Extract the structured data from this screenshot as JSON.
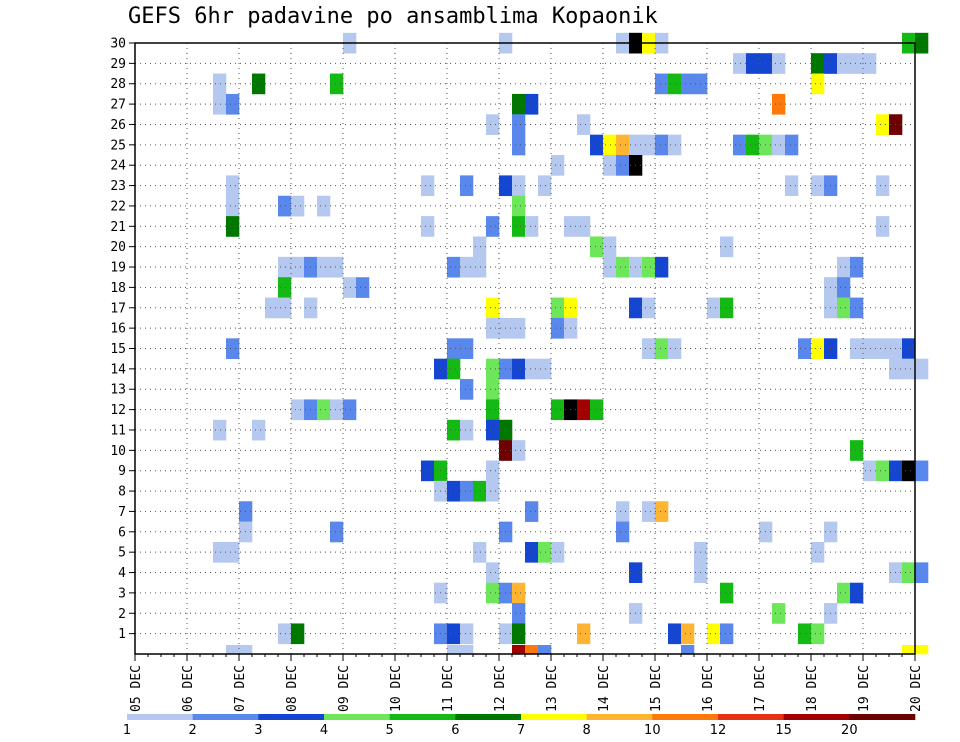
{
  "chart_data": {
    "type": "heatmap",
    "title": "GEFS 6hr padavine po ansamblima Kopaonik",
    "x_tick_labels": [
      "05 DEC",
      "06 DEC",
      "07 DEC",
      "08 DEC",
      "09 DEC",
      "10 DEC",
      "11 DEC",
      "12 DEC",
      "13 DEC",
      "14 DEC",
      "15 DEC",
      "16 DEC",
      "17 DEC",
      "18 DEC",
      "19 DEC",
      "20 DEC"
    ],
    "y_tick_labels": [
      "1",
      "2",
      "3",
      "4",
      "5",
      "6",
      "7",
      "8",
      "9",
      "10",
      "11",
      "12",
      "13",
      "14",
      "15",
      "16",
      "17",
      "18",
      "19",
      "20",
      "21",
      "22",
      "23",
      "24",
      "25",
      "26",
      "27",
      "28",
      "29",
      "30"
    ],
    "x_range_days": [
      0,
      15
    ],
    "y_range": [
      0,
      30
    ],
    "grid": "dotted",
    "time_step_hours": 6,
    "color_scale": {
      "labels": [
        "1",
        "2",
        "3",
        "4",
        "5",
        "6",
        "7",
        "8",
        "10",
        "12",
        "15",
        "20"
      ],
      "colors": [
        "#b4c8f0",
        "#5a87eb",
        "#1446d2",
        "#6ee65a",
        "#14b914",
        "#007800",
        "#ffff00",
        "#ffb432",
        "#ff780a",
        "#e63214",
        "#a00000",
        "#6e0000"
      ]
    },
    "cells": [
      {
        "m": 30,
        "c": [
          [
            16,
            1
          ],
          [
            28,
            1
          ],
          [
            37,
            1
          ],
          [
            38,
            13
          ],
          [
            39,
            7
          ],
          [
            40,
            1
          ],
          [
            59,
            5
          ],
          [
            60,
            6
          ]
        ]
      },
      {
        "m": 29,
        "c": [
          [
            46,
            1
          ],
          [
            47,
            3
          ],
          [
            48,
            3
          ],
          [
            49,
            1
          ],
          [
            52,
            6
          ],
          [
            53,
            3
          ],
          [
            54,
            1
          ],
          [
            55,
            1
          ],
          [
            56,
            1
          ]
        ]
      },
      {
        "m": 28,
        "c": [
          [
            6,
            1
          ],
          [
            9,
            6
          ],
          [
            15,
            5
          ],
          [
            40,
            2
          ],
          [
            41,
            5
          ],
          [
            42,
            2
          ],
          [
            43,
            2
          ],
          [
            52,
            7
          ]
        ]
      },
      {
        "m": 27,
        "c": [
          [
            6,
            1
          ],
          [
            7,
            2
          ],
          [
            29,
            6
          ],
          [
            30,
            3
          ],
          [
            49,
            9
          ]
        ]
      },
      {
        "m": 26,
        "c": [
          [
            27,
            1
          ],
          [
            29,
            2
          ],
          [
            34,
            1
          ],
          [
            57,
            7
          ],
          [
            58,
            12
          ]
        ]
      },
      {
        "m": 25,
        "c": [
          [
            29,
            2
          ],
          [
            35,
            3
          ],
          [
            36,
            7
          ],
          [
            37,
            8
          ],
          [
            38,
            1
          ],
          [
            39,
            1
          ],
          [
            40,
            2
          ],
          [
            41,
            1
          ],
          [
            46,
            2
          ],
          [
            47,
            5
          ],
          [
            48,
            4
          ],
          [
            49,
            1
          ],
          [
            50,
            2
          ]
        ]
      },
      {
        "m": 24,
        "c": [
          [
            32,
            1
          ],
          [
            36,
            1
          ],
          [
            37,
            2
          ],
          [
            38,
            13
          ]
        ]
      },
      {
        "m": 23,
        "c": [
          [
            7,
            1
          ],
          [
            22,
            1
          ],
          [
            25,
            2
          ],
          [
            28,
            3
          ],
          [
            29,
            1
          ],
          [
            31,
            1
          ],
          [
            50,
            1
          ],
          [
            52,
            1
          ],
          [
            53,
            2
          ],
          [
            57,
            1
          ]
        ]
      },
      {
        "m": 22,
        "c": [
          [
            7,
            1
          ],
          [
            11,
            2
          ],
          [
            12,
            1
          ],
          [
            14,
            1
          ],
          [
            29,
            4
          ]
        ]
      },
      {
        "m": 21,
        "c": [
          [
            7,
            6
          ],
          [
            22,
            1
          ],
          [
            27,
            2
          ],
          [
            29,
            5
          ],
          [
            30,
            1
          ],
          [
            33,
            1
          ],
          [
            34,
            1
          ],
          [
            57,
            1
          ]
        ]
      },
      {
        "m": 20,
        "c": [
          [
            26,
            1
          ],
          [
            35,
            4
          ],
          [
            36,
            1
          ],
          [
            45,
            1
          ]
        ]
      },
      {
        "m": 19,
        "c": [
          [
            11,
            1
          ],
          [
            12,
            1
          ],
          [
            13,
            2
          ],
          [
            14,
            1
          ],
          [
            15,
            1
          ],
          [
            24,
            2
          ],
          [
            25,
            1
          ],
          [
            26,
            1
          ],
          [
            36,
            1
          ],
          [
            37,
            4
          ],
          [
            38,
            1
          ],
          [
            39,
            4
          ],
          [
            40,
            3
          ],
          [
            54,
            1
          ],
          [
            55,
            2
          ]
        ]
      },
      {
        "m": 18,
        "c": [
          [
            11,
            5
          ],
          [
            16,
            1
          ],
          [
            17,
            2
          ],
          [
            53,
            1
          ],
          [
            54,
            2
          ]
        ]
      },
      {
        "m": 17,
        "c": [
          [
            10,
            1
          ],
          [
            11,
            1
          ],
          [
            13,
            1
          ],
          [
            27,
            7
          ],
          [
            32,
            4
          ],
          [
            33,
            7
          ],
          [
            38,
            3
          ],
          [
            39,
            1
          ],
          [
            44,
            1
          ],
          [
            45,
            5
          ],
          [
            53,
            1
          ],
          [
            54,
            4
          ],
          [
            55,
            2
          ]
        ]
      },
      {
        "m": 16,
        "c": [
          [
            27,
            1
          ],
          [
            28,
            1
          ],
          [
            29,
            1
          ],
          [
            32,
            2
          ],
          [
            33,
            1
          ]
        ]
      },
      {
        "m": 15,
        "c": [
          [
            7,
            2
          ],
          [
            24,
            2
          ],
          [
            25,
            2
          ],
          [
            39,
            1
          ],
          [
            40,
            4
          ],
          [
            41,
            1
          ],
          [
            51,
            2
          ],
          [
            52,
            7
          ],
          [
            53,
            3
          ],
          [
            55,
            1
          ],
          [
            56,
            1
          ],
          [
            57,
            1
          ],
          [
            58,
            1
          ],
          [
            59,
            3
          ]
        ]
      },
      {
        "m": 14,
        "c": [
          [
            23,
            3
          ],
          [
            24,
            5
          ],
          [
            27,
            4
          ],
          [
            28,
            2
          ],
          [
            29,
            3
          ],
          [
            30,
            1
          ],
          [
            31,
            1
          ],
          [
            58,
            1
          ],
          [
            59,
            1
          ],
          [
            60,
            1
          ]
        ]
      },
      {
        "m": 13,
        "c": [
          [
            25,
            2
          ],
          [
            27,
            4
          ]
        ]
      },
      {
        "m": 12,
        "c": [
          [
            12,
            1
          ],
          [
            13,
            2
          ],
          [
            14,
            4
          ],
          [
            15,
            1
          ],
          [
            16,
            2
          ],
          [
            27,
            5
          ],
          [
            32,
            5
          ],
          [
            33,
            14
          ],
          [
            34,
            11
          ],
          [
            35,
            5
          ]
        ]
      },
      {
        "m": 11,
        "c": [
          [
            6,
            1
          ],
          [
            9,
            1
          ],
          [
            24,
            5
          ],
          [
            25,
            1
          ],
          [
            27,
            3
          ],
          [
            28,
            6
          ]
        ]
      },
      {
        "m": 10,
        "c": [
          [
            28,
            12
          ],
          [
            29,
            1
          ],
          [
            55,
            5
          ]
        ]
      },
      {
        "m": 9,
        "c": [
          [
            22,
            3
          ],
          [
            23,
            5
          ],
          [
            27,
            1
          ],
          [
            56,
            1
          ],
          [
            57,
            4
          ],
          [
            58,
            3
          ],
          [
            59,
            14
          ],
          [
            60,
            2
          ]
        ]
      },
      {
        "m": 8,
        "c": [
          [
            23,
            1
          ],
          [
            24,
            3
          ],
          [
            25,
            2
          ],
          [
            26,
            5
          ],
          [
            27,
            1
          ]
        ]
      },
      {
        "m": 7,
        "c": [
          [
            8,
            2
          ],
          [
            30,
            2
          ],
          [
            37,
            1
          ],
          [
            39,
            1
          ],
          [
            40,
            8
          ]
        ]
      },
      {
        "m": 6,
        "c": [
          [
            8,
            1
          ],
          [
            15,
            2
          ],
          [
            28,
            2
          ],
          [
            37,
            2
          ],
          [
            48,
            1
          ],
          [
            53,
            1
          ]
        ]
      },
      {
        "m": 5,
        "c": [
          [
            6,
            1
          ],
          [
            7,
            1
          ],
          [
            26,
            1
          ],
          [
            30,
            3
          ],
          [
            31,
            4
          ],
          [
            32,
            1
          ],
          [
            43,
            1
          ],
          [
            52,
            1
          ]
        ]
      },
      {
        "m": 4,
        "c": [
          [
            27,
            1
          ],
          [
            38,
            3
          ],
          [
            43,
            1
          ],
          [
            58,
            1
          ],
          [
            59,
            4
          ],
          [
            60,
            2
          ]
        ]
      },
      {
        "m": 3,
        "c": [
          [
            23,
            1
          ],
          [
            27,
            4
          ],
          [
            28,
            2
          ],
          [
            29,
            8
          ],
          [
            45,
            5
          ],
          [
            54,
            4
          ],
          [
            55,
            3
          ]
        ]
      },
      {
        "m": 2,
        "c": [
          [
            29,
            2
          ],
          [
            38,
            1
          ],
          [
            49,
            4
          ],
          [
            53,
            1
          ]
        ]
      },
      {
        "m": 1,
        "c": [
          [
            11,
            1
          ],
          [
            12,
            6
          ],
          [
            23,
            2
          ],
          [
            24,
            3
          ],
          [
            25,
            1
          ],
          [
            28,
            1
          ],
          [
            29,
            6
          ],
          [
            34,
            8
          ],
          [
            41,
            3
          ],
          [
            42,
            8
          ],
          [
            44,
            7
          ],
          [
            45,
            2
          ],
          [
            51,
            5
          ],
          [
            52,
            4
          ]
        ]
      },
      {
        "m": 0,
        "c": [
          [
            7,
            1
          ],
          [
            8,
            1
          ],
          [
            24,
            1
          ],
          [
            25,
            1
          ],
          [
            29,
            11
          ],
          [
            30,
            9
          ],
          [
            31,
            2
          ],
          [
            42,
            2
          ],
          [
            59,
            7
          ],
          [
            60,
            7
          ]
        ]
      }
    ]
  }
}
